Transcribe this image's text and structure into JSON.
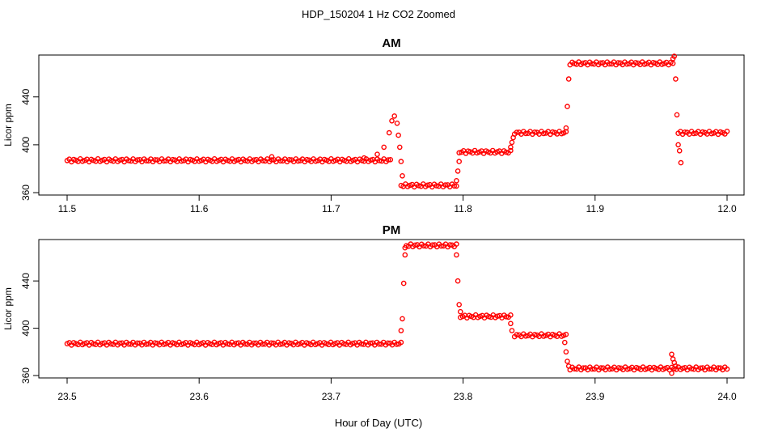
{
  "figure": {
    "title": "HDP_150204  1 Hz CO2 Zoomed",
    "xlabel": "Hour of Day (UTC)",
    "point_color": "#ff0000"
  },
  "chart_data": [
    {
      "type": "scatter",
      "title": "AM",
      "xlabel": "",
      "ylabel": "Licor ppm",
      "xlim": [
        11.5,
        12.0
      ],
      "ylim": [
        358,
        475
      ],
      "xticks": [
        "11.5",
        "11.6",
        "11.7",
        "11.8",
        "11.9",
        "12.0"
      ],
      "yticks": [
        "360",
        "400",
        "440"
      ],
      "marker": "open-circle",
      "series": [
        {
          "name": "",
          "segments": [
            {
              "x": [
                11.5,
                11.745
              ],
              "y": 387
            },
            {
              "x": [
                11.753,
                11.795
              ],
              "y": 366
            },
            {
              "x": [
                11.797,
                11.836
              ],
              "y": 394
            },
            {
              "x": [
                11.839,
                11.878
              ],
              "y": 410
            },
            {
              "x": [
                11.881,
                11.959
              ],
              "y": 468
            },
            {
              "x": [
                11.963,
                12.0
              ],
              "y": 410
            }
          ],
          "points": [
            [
              11.655,
              390
            ],
            [
              11.725,
              389
            ],
            [
              11.735,
              392
            ],
            [
              11.74,
              398
            ],
            [
              11.744,
              410
            ],
            [
              11.746,
              420
            ],
            [
              11.748,
              424
            ],
            [
              11.75,
              418
            ],
            [
              11.751,
              408
            ],
            [
              11.752,
              398
            ],
            [
              11.753,
              386
            ],
            [
              11.754,
              374
            ],
            [
              11.795,
              370
            ],
            [
              11.796,
              378
            ],
            [
              11.797,
              386
            ],
            [
              11.836,
              398
            ],
            [
              11.837,
              402
            ],
            [
              11.838,
              406
            ],
            [
              11.878,
              414
            ],
            [
              11.879,
              432
            ],
            [
              11.88,
              455
            ],
            [
              11.959,
              472
            ],
            [
              11.96,
              474
            ],
            [
              11.961,
              455
            ],
            [
              11.962,
              425
            ],
            [
              11.963,
              400
            ],
            [
              11.964,
              395
            ],
            [
              11.965,
              385
            ]
          ]
        }
      ]
    },
    {
      "type": "scatter",
      "title": "PM",
      "xlabel": "Hour of Day (UTC)",
      "ylabel": "Licor ppm",
      "xlim": [
        23.5,
        24.0
      ],
      "ylim": [
        358,
        475
      ],
      "xticks": [
        "23.5",
        "23.6",
        "23.7",
        "23.8",
        "23.9",
        "24.0"
      ],
      "yticks": [
        "360",
        "400",
        "440"
      ],
      "marker": "open-circle",
      "series": [
        {
          "name": "",
          "segments": [
            {
              "x": [
                23.5,
                23.753
              ],
              "y": 387
            },
            {
              "x": [
                23.757,
                23.795
              ],
              "y": 470
            },
            {
              "x": [
                23.798,
                23.836
              ],
              "y": 410
            },
            {
              "x": [
                23.839,
                23.878
              ],
              "y": 394
            },
            {
              "x": [
                23.881,
                24.0
              ],
              "y": 366
            }
          ],
          "points": [
            [
              23.753,
              398
            ],
            [
              23.754,
              408
            ],
            [
              23.755,
              438
            ],
            [
              23.756,
              462
            ],
            [
              23.756,
              468
            ],
            [
              23.795,
              462
            ],
            [
              23.796,
              440
            ],
            [
              23.797,
              420
            ],
            [
              23.798,
              414
            ],
            [
              23.836,
              404
            ],
            [
              23.837,
              398
            ],
            [
              23.877,
              388
            ],
            [
              23.878,
              380
            ],
            [
              23.879,
              372
            ],
            [
              23.88,
              368
            ],
            [
              23.958,
              378
            ],
            [
              23.959,
              374
            ],
            [
              23.96,
              371
            ],
            [
              23.961,
              368
            ],
            [
              23.958,
              362
            ]
          ]
        }
      ]
    }
  ]
}
